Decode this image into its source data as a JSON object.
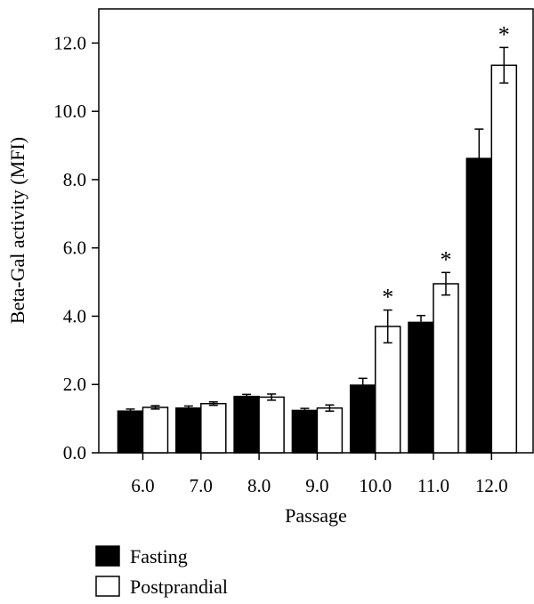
{
  "chart_data": {
    "type": "bar",
    "title": "",
    "xlabel": "Passage",
    "ylabel": "Beta-Gal activity (MFI)",
    "ylim": [
      0,
      13
    ],
    "yticks": [
      0,
      2,
      4,
      6,
      8,
      10,
      12
    ],
    "ytick_labels": [
      "0.0",
      "2.0",
      "4.0",
      "6.0",
      "8.0",
      "10.0",
      "12.0"
    ],
    "categories": [
      "6.0",
      "7.0",
      "8.0",
      "9.0",
      "10.0",
      "11.0",
      "12.0"
    ],
    "series": [
      {
        "name": "Fasting",
        "color": "#000000",
        "values": [
          1.22,
          1.31,
          1.65,
          1.24,
          1.98,
          3.82,
          8.62
        ],
        "errors": [
          0.06,
          0.06,
          0.06,
          0.06,
          0.2,
          0.2,
          0.86
        ]
      },
      {
        "name": "Postprandial",
        "color": "#ffffff",
        "values": [
          1.33,
          1.44,
          1.63,
          1.31,
          3.7,
          4.95,
          11.35
        ],
        "errors": [
          0.05,
          0.05,
          0.09,
          0.09,
          0.48,
          0.33,
          0.52
        ]
      }
    ],
    "significance": [
      {
        "category": "10.0",
        "series": "Postprandial",
        "label": "*"
      },
      {
        "category": "11.0",
        "series": "Postprandial",
        "label": "*"
      },
      {
        "category": "12.0",
        "series": "Postprandial",
        "label": "*"
      }
    ],
    "legend_position": "bottom-left",
    "grid": false
  }
}
